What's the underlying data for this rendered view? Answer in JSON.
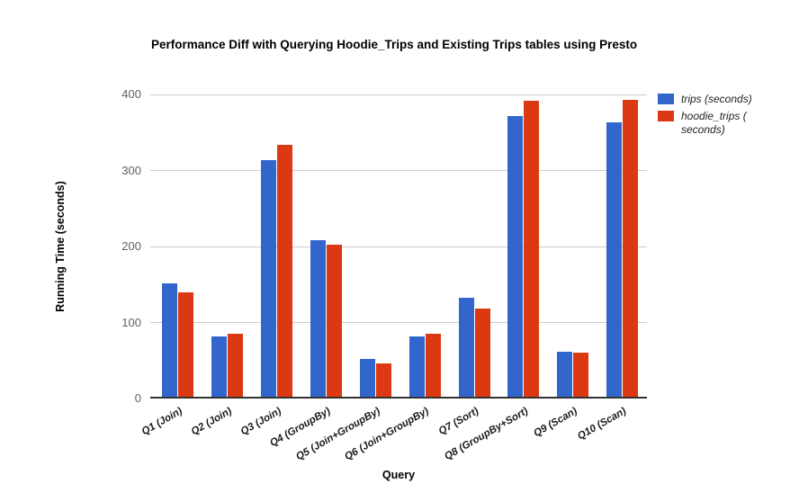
{
  "chart_data": {
    "type": "bar",
    "title": "Performance Diff with Querying Hoodie_Trips and Existing Trips tables using Presto",
    "xlabel": "Query",
    "ylabel": "Running Time (seconds)",
    "categories": [
      "Q1 (Join)",
      "Q2 (Join)",
      "Q3 (Join)",
      "Q4 (GroupBy)",
      "Q5 (Join+GroupBy)",
      "Q6 (Join+GroupBy)",
      "Q7 (Sort)",
      "Q8 (GroupBy+Sort)",
      "Q9 (Scan)",
      "Q10 (Scan)"
    ],
    "series": [
      {
        "name": "trips (seconds)",
        "color": "#3366cc",
        "values": [
          150,
          81,
          313,
          207,
          51,
          80,
          131,
          370,
          60,
          362
        ]
      },
      {
        "name": "hoodie_trips (seconds)",
        "color": "#dc3912",
        "values": [
          138,
          84,
          332,
          201,
          45,
          84,
          117,
          390,
          59,
          392
        ]
      }
    ],
    "ylim": [
      0,
      400
    ],
    "yticks": [
      0,
      100,
      200,
      300,
      400
    ],
    "grid": true,
    "legend_position": "right"
  },
  "legend": {
    "items": [
      {
        "lines": [
          "trips (seconds)"
        ],
        "color": "#3366cc"
      },
      {
        "lines": [
          "hoodie_trips (",
          "seconds)"
        ],
        "color": "#dc3912"
      }
    ]
  },
  "colors": {
    "series_blue": "#3366cc",
    "series_red": "#dc3912",
    "gridline": "#cccccc",
    "axis_line": "#333333",
    "tick_label": "#616161",
    "title_text": "#000000",
    "category_label": "#1a1a1a",
    "background": "#ffffff"
  }
}
